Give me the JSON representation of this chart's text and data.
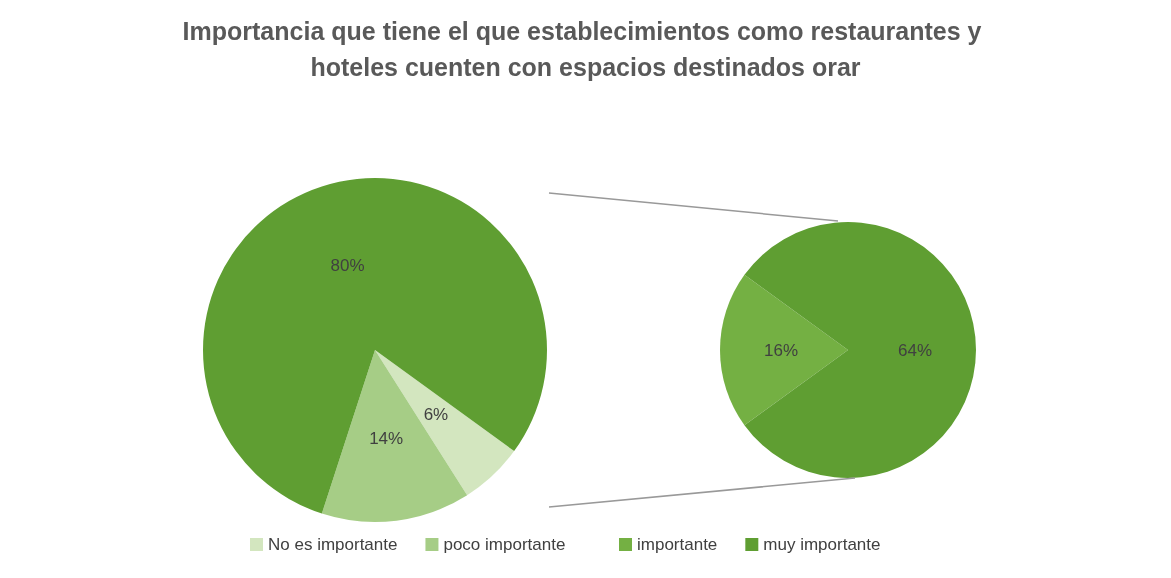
{
  "chart_data": [
    {
      "type": "pie",
      "title": "Importancia que tiene el que establecimientos como restaurantes y hoteles cuenten con espacios destinados orar",
      "categories": [
        "No es importante",
        "poco importante",
        null
      ],
      "values": [
        6,
        14,
        80
      ],
      "value_labels": [
        "6%",
        "14%",
        "80%"
      ],
      "colors": [
        "#d3e6bf",
        "#a6cd86",
        "#5f9e32"
      ],
      "legend": "bottom"
    },
    {
      "type": "pie",
      "categories": [
        "importante",
        "muy importante"
      ],
      "values": [
        16,
        64
      ],
      "value_labels": [
        "16%",
        "64%"
      ],
      "colors": [
        "#74b043",
        "#5f9e32"
      ],
      "legend": "bottom"
    }
  ]
}
